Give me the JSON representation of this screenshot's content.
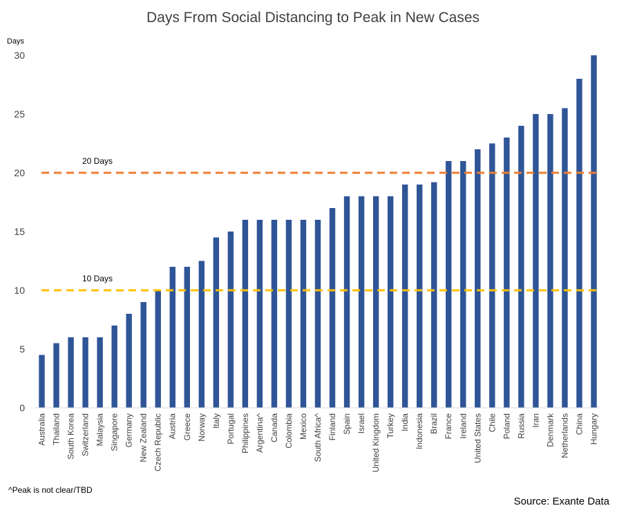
{
  "chart_data": {
    "type": "bar",
    "title": "Days From Social Distancing to Peak in New Cases",
    "ylabel": "Days",
    "xlabel": "",
    "ylim": [
      0,
      30
    ],
    "yticks": [
      0,
      5,
      10,
      15,
      20,
      25,
      30
    ],
    "grid": false,
    "categories": [
      "Australia",
      "Thailand",
      "South Korea",
      "Switzerland",
      "Malaysia",
      "Singapore",
      "Germany",
      "New Zealand",
      "Czech Republic",
      "Austria",
      "Greece",
      "Norway",
      "Italy",
      "Portugal",
      "Philippines",
      "Argentina^",
      "Canada",
      "Colombia",
      "Mexico",
      "South Africa^",
      "Finland",
      "Spain",
      "Israel",
      "United Kingdom",
      "Turkey",
      "India",
      "Indonesia",
      "Brazil",
      "France",
      "Ireland",
      "United States",
      "Chile",
      "Poland",
      "Russia",
      "Iran",
      "Denmark",
      "Netherlands",
      "China",
      "Hungary"
    ],
    "values": [
      4.5,
      5.5,
      6,
      6,
      6,
      7,
      8,
      9,
      10,
      12,
      12,
      12.5,
      14.5,
      15,
      16,
      16,
      16,
      16,
      16,
      16,
      17,
      18,
      18,
      18,
      18,
      19,
      19,
      19.2,
      21,
      21,
      22,
      22.5,
      23,
      24,
      25,
      25,
      25.5,
      28,
      30
    ],
    "bar_color": "#2f5597",
    "reference_lines": [
      {
        "value": 20,
        "label": "20 Days",
        "color": "#ed7d31"
      },
      {
        "value": 10,
        "label": "10 Days",
        "color": "#ffc000"
      }
    ],
    "footnote": "^Peak is not clear/TBD",
    "source": "Source: Exante Data"
  }
}
